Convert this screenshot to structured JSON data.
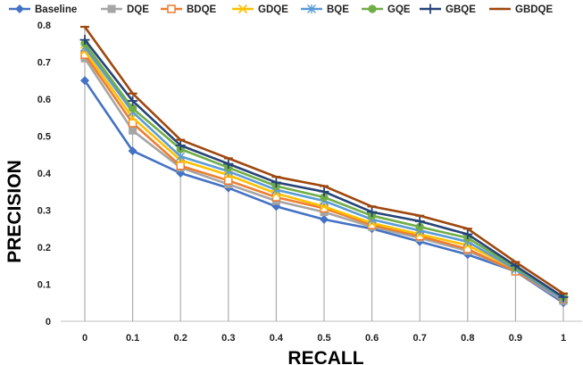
{
  "chart_data": {
    "type": "line",
    "title": "",
    "xlabel": "RECALL",
    "ylabel": "PRECISION",
    "x": [
      0,
      0.1,
      0.2,
      0.3,
      0.4,
      0.5,
      0.6,
      0.7,
      0.8,
      0.9,
      1
    ],
    "x_tick_labels": [
      "0",
      "0.1",
      "0.2",
      "0.3",
      "0.4",
      "0.5",
      "0.6",
      "0.7",
      "0.8",
      "0.9",
      "1"
    ],
    "y_tick_labels": [
      "0",
      "0.1",
      "0.2",
      "0.3",
      "0.4",
      "0.5",
      "0.6",
      "0.7",
      "0.8"
    ],
    "ylim": [
      0,
      0.8
    ],
    "grid": false,
    "drop_lines": true,
    "legend_position": "top",
    "series": [
      {
        "name": "Baseline",
        "color": "#4472C4",
        "marker": "diamond",
        "values": [
          0.65,
          0.46,
          0.4,
          0.36,
          0.31,
          0.275,
          0.25,
          0.215,
          0.18,
          0.135,
          0.05
        ]
      },
      {
        "name": "DQE",
        "color": "#A5A5A5",
        "marker": "square",
        "values": [
          0.71,
          0.515,
          0.415,
          0.37,
          0.325,
          0.295,
          0.255,
          0.225,
          0.19,
          0.135,
          0.055
        ]
      },
      {
        "name": "BDQE",
        "color": "#ED7D31",
        "marker": "open-square",
        "values": [
          0.72,
          0.535,
          0.42,
          0.38,
          0.335,
          0.305,
          0.26,
          0.23,
          0.195,
          0.135,
          0.06
        ]
      },
      {
        "name": "GDQE",
        "color": "#FFC000",
        "marker": "x",
        "values": [
          0.73,
          0.55,
          0.435,
          0.395,
          0.345,
          0.31,
          0.265,
          0.235,
          0.205,
          0.14,
          0.06
        ]
      },
      {
        "name": "BQE",
        "color": "#5B9BD5",
        "marker": "star",
        "values": [
          0.74,
          0.565,
          0.445,
          0.405,
          0.355,
          0.325,
          0.275,
          0.245,
          0.215,
          0.14,
          0.06
        ]
      },
      {
        "name": "GQE",
        "color": "#70AD47",
        "marker": "circle",
        "values": [
          0.75,
          0.575,
          0.465,
          0.415,
          0.365,
          0.335,
          0.285,
          0.255,
          0.225,
          0.145,
          0.065
        ]
      },
      {
        "name": "GBQE",
        "color": "#264478",
        "marker": "plus",
        "values": [
          0.76,
          0.595,
          0.475,
          0.425,
          0.375,
          0.35,
          0.295,
          0.27,
          0.235,
          0.15,
          0.065
        ]
      },
      {
        "name": "GBDQE",
        "color": "#9E480E",
        "marker": "dash",
        "values": [
          0.795,
          0.615,
          0.49,
          0.44,
          0.39,
          0.365,
          0.31,
          0.285,
          0.25,
          0.16,
          0.075
        ]
      }
    ]
  }
}
